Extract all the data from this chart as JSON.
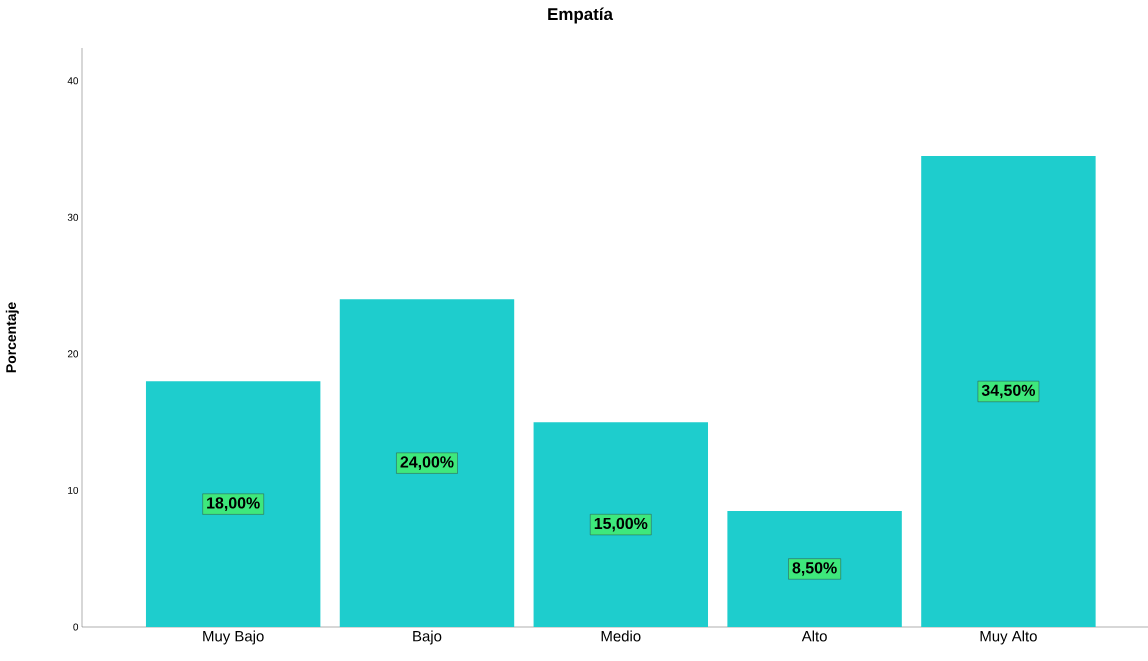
{
  "chart_data": {
    "type": "bar",
    "title": "Empatía",
    "ylabel": "Porcentaje",
    "categories": [
      "Muy Bajo",
      "Bajo",
      "Medio",
      "Alto",
      "Muy Alto"
    ],
    "values": [
      18,
      24,
      15,
      8.5,
      34.5
    ],
    "value_labels": [
      "18,00%",
      "24,00%",
      "15,00%",
      "8,50%",
      "34,50%"
    ],
    "color": "#1ecdcd",
    "ylim": [
      0,
      42.4
    ],
    "yticks": [
      0,
      10,
      20,
      30,
      40
    ],
    "grid": false
  }
}
